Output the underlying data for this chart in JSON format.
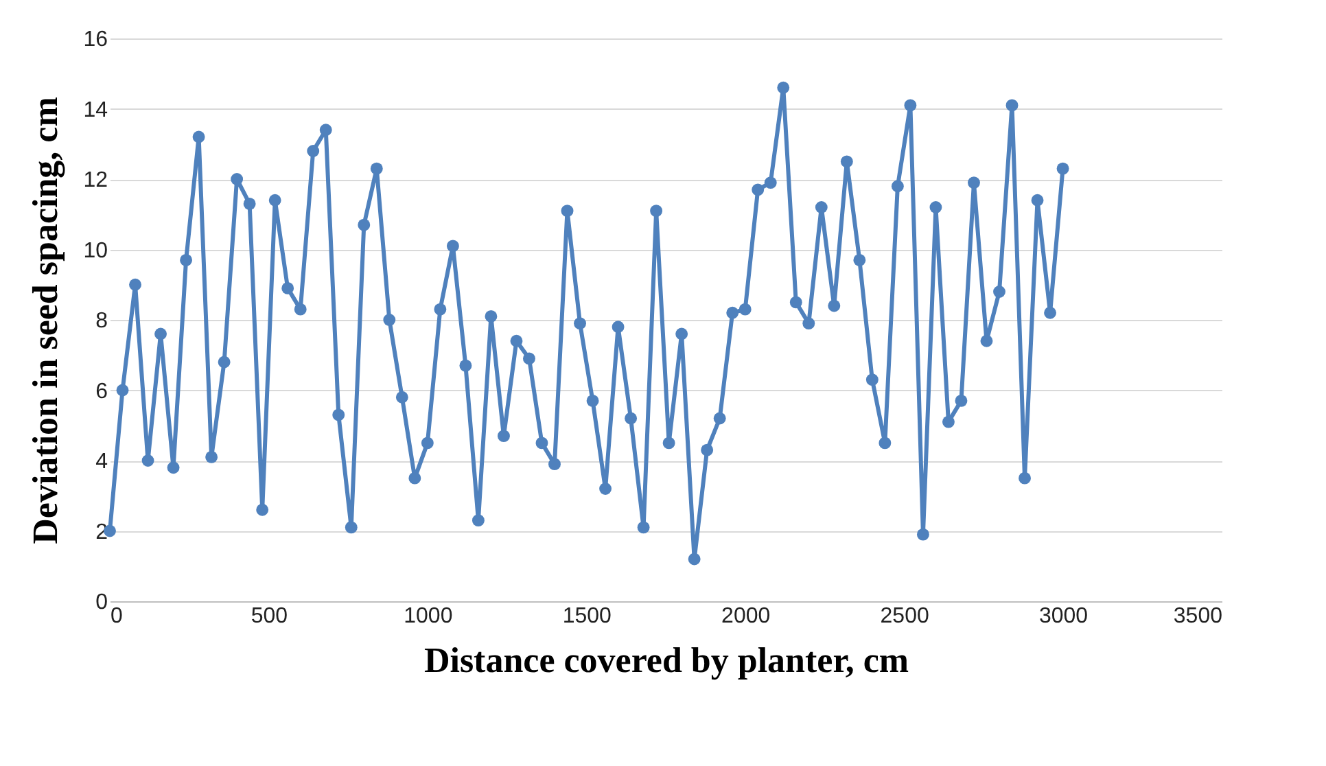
{
  "chart_data": {
    "type": "line",
    "xlabel": "Distance covered by planter, cm",
    "ylabel": "Deviation in seed spacing, cm",
    "x": [
      0,
      40,
      80,
      120,
      160,
      200,
      240,
      280,
      320,
      360,
      400,
      440,
      480,
      520,
      560,
      600,
      640,
      680,
      720,
      760,
      800,
      840,
      880,
      920,
      960,
      1000,
      1040,
      1080,
      1120,
      1160,
      1200,
      1240,
      1280,
      1320,
      1360,
      1400,
      1440,
      1480,
      1520,
      1560,
      1600,
      1640,
      1680,
      1720,
      1760,
      1800,
      1840,
      1880,
      1920,
      1960,
      2000,
      2040,
      2080,
      2120,
      2160,
      2200,
      2240,
      2280,
      2320,
      2360,
      2400,
      2440,
      2480,
      2520,
      2560,
      2600,
      2640,
      2680,
      2720,
      2760,
      2800,
      2840,
      2880,
      2920,
      2960,
      3000
    ],
    "series": [
      {
        "color": "#4f81bd",
        "values": [
          2.0,
          6.0,
          9.0,
          4.0,
          7.6,
          3.8,
          9.7,
          13.2,
          4.1,
          6.8,
          12.0,
          11.3,
          2.6,
          11.4,
          8.9,
          8.3,
          12.8,
          13.4,
          5.3,
          2.1,
          10.7,
          12.3,
          8.0,
          5.8,
          3.5,
          4.5,
          8.3,
          10.1,
          6.7,
          2.3,
          8.1,
          4.7,
          7.4,
          6.9,
          4.5,
          3.9,
          11.1,
          7.9,
          5.7,
          3.2,
          7.8,
          5.2,
          2.1,
          11.1,
          4.5,
          7.6,
          1.2,
          4.3,
          5.2,
          8.2,
          8.3,
          11.7,
          11.9,
          14.6,
          8.5,
          7.9,
          11.2,
          8.4,
          12.5,
          9.7,
          6.3,
          4.5,
          11.8,
          14.1,
          1.9,
          11.2,
          5.1,
          5.7,
          11.9,
          7.4,
          8.8,
          14.1,
          3.5,
          11.4,
          8.2,
          12.3
        ]
      }
    ],
    "xlim": [
      0,
      3500
    ],
    "xticks": [
      0,
      500,
      1000,
      1500,
      2000,
      2500,
      3000,
      3500
    ],
    "ylim": [
      0,
      16
    ],
    "yticks": [
      0,
      2,
      4,
      6,
      8,
      10,
      12,
      14,
      16
    ],
    "grid": "y",
    "marker": "circle",
    "line_style": "solid",
    "legend": false
  }
}
